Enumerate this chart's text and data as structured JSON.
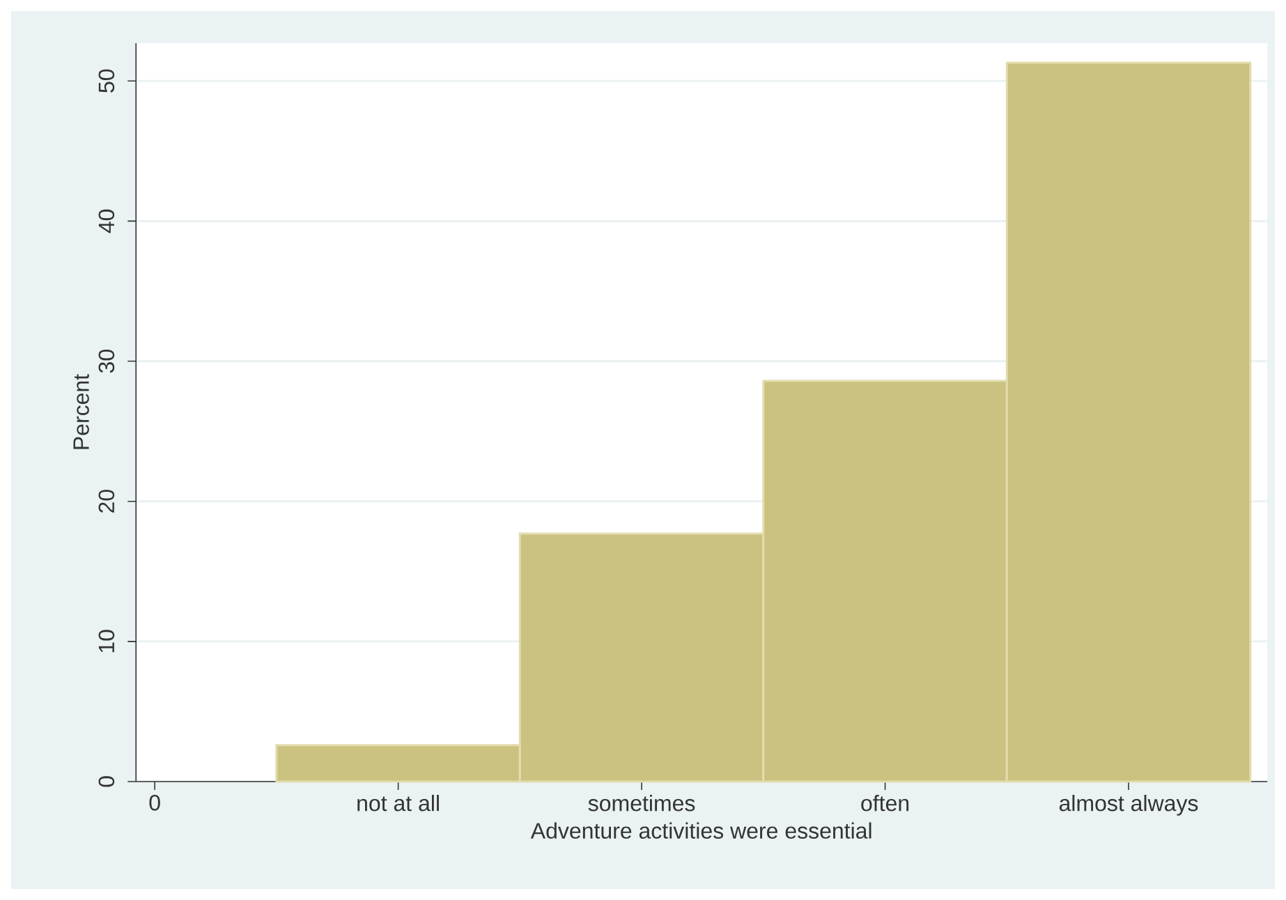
{
  "chart_data": {
    "type": "bar",
    "xlabel": "Adventure activities were essential",
    "ylabel": "Percent",
    "categories": [
      "0",
      "not at all",
      "sometimes",
      "often",
      "almost always"
    ],
    "values": [
      null,
      2.6,
      17.7,
      28.6,
      51.3
    ],
    "color": "#cac27e",
    "ylim": [
      0,
      52.7
    ],
    "yticks": [
      0,
      10,
      20,
      30,
      40,
      50
    ],
    "grid": "y"
  }
}
